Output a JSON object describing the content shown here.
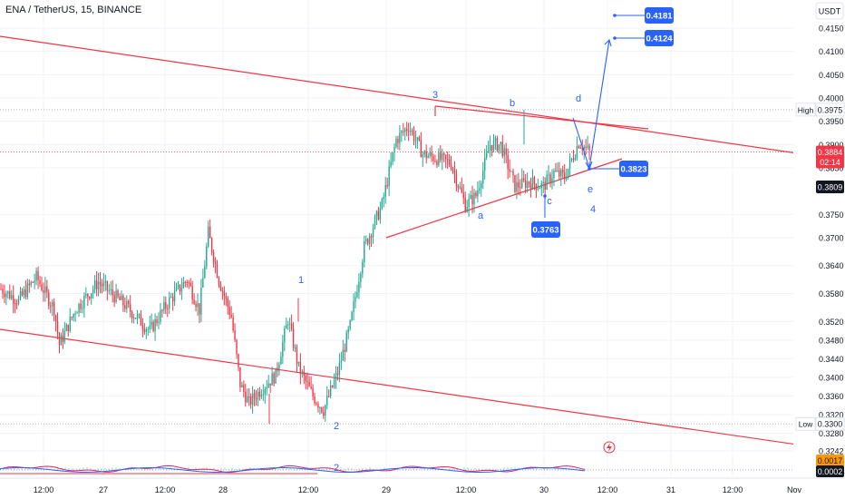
{
  "header": {
    "symbol": "ENA / TetherUS, 15, BINANCE"
  },
  "currency": "USDT",
  "colors": {
    "up": "#22ab94",
    "down": "#f23645",
    "trendline": "#f23645",
    "annotation": "#2962ff",
    "text": "#131722",
    "axis_text": "#131722"
  },
  "chart_data": {
    "type": "candlestick",
    "title": "ENA / TetherUS, 15, BINANCE",
    "ylim": [
      0.3225,
      0.4225
    ],
    "y_ticks": [
      "0.4150",
      "0.4100",
      "0.4050",
      "0.4000",
      "0.3950",
      "0.3900",
      "0.3850",
      "0.3750",
      "0.3700",
      "0.3640",
      "0.3580",
      "0.3520",
      "0.3480",
      "0.3440",
      "0.3400",
      "0.3360",
      "0.3320",
      "0.3280",
      "0.3242"
    ],
    "x_ticks": [
      "12:00",
      "27",
      "12:00",
      "28",
      "12:00",
      "29",
      "12:00",
      "30",
      "12:00",
      "31",
      "12:00",
      "Nov"
    ],
    "anchors": [
      {
        "t": 0,
        "p": 0.359
      },
      {
        "t": 10,
        "p": 0.3565
      },
      {
        "t": 20,
        "p": 0.3615
      },
      {
        "t": 30,
        "p": 0.3548
      },
      {
        "t": 33,
        "p": 0.347
      },
      {
        "t": 42,
        "p": 0.3545
      },
      {
        "t": 55,
        "p": 0.3605
      },
      {
        "t": 70,
        "p": 0.3555
      },
      {
        "t": 84,
        "p": 0.35
      },
      {
        "t": 95,
        "p": 0.3565
      },
      {
        "t": 105,
        "p": 0.361
      },
      {
        "t": 112,
        "p": 0.3545
      },
      {
        "t": 117,
        "p": 0.371
      },
      {
        "t": 123,
        "p": 0.361
      },
      {
        "t": 130,
        "p": 0.353
      },
      {
        "t": 135,
        "p": 0.3385
      },
      {
        "t": 140,
        "p": 0.3345
      },
      {
        "t": 147,
        "p": 0.3375
      },
      {
        "t": 155,
        "p": 0.3405
      },
      {
        "t": 162,
        "p": 0.3525
      },
      {
        "t": 168,
        "p": 0.342
      },
      {
        "t": 176,
        "p": 0.336
      },
      {
        "t": 182,
        "p": 0.333
      },
      {
        "t": 190,
        "p": 0.341
      },
      {
        "t": 197,
        "p": 0.351
      },
      {
        "t": 205,
        "p": 0.368
      },
      {
        "t": 215,
        "p": 0.377
      },
      {
        "t": 223,
        "p": 0.391
      },
      {
        "t": 230,
        "p": 0.394
      },
      {
        "t": 238,
        "p": 0.388
      },
      {
        "t": 246,
        "p": 0.387
      },
      {
        "t": 254,
        "p": 0.386
      },
      {
        "t": 262,
        "p": 0.377
      },
      {
        "t": 268,
        "p": 0.379
      },
      {
        "t": 276,
        "p": 0.39
      },
      {
        "t": 282,
        "p": 0.39
      },
      {
        "t": 290,
        "p": 0.381
      },
      {
        "t": 298,
        "p": 0.382
      },
      {
        "t": 306,
        "p": 0.381
      },
      {
        "t": 312,
        "p": 0.384
      },
      {
        "t": 318,
        "p": 0.383
      },
      {
        "t": 326,
        "p": 0.3905
      },
      {
        "t": 332,
        "p": 0.3884
      }
    ],
    "key_levels": {
      "high": 0.3975,
      "low": 0.33,
      "last_price": 0.3884,
      "countdown": "02:14",
      "current_line": 0.3809,
      "volume_osc_1": 0.0017,
      "volume_osc_2": 0.0002
    },
    "price_targets": [
      {
        "label": "0.4181",
        "value": 0.4181
      },
      {
        "label": "0.4124",
        "value": 0.4124
      },
      {
        "label": "0.3823",
        "value": 0.3823
      },
      {
        "label": "0.3763",
        "value": 0.3763
      }
    ],
    "wave_labels": [
      "1",
      "2",
      "3",
      "4",
      "a",
      "b",
      "c",
      "d",
      "e",
      "2"
    ]
  },
  "axis_labels": {
    "high_tag": "High",
    "high_value": "0.3975",
    "low_tag": "Low",
    "low_value": "0.3300",
    "last_value": "0.3884",
    "countdown": "02:14",
    "current_value": "0.3809",
    "osc_value_1": "0.0017",
    "osc_value_2": "0.0002"
  },
  "indicator_icon": "lightning-icon"
}
